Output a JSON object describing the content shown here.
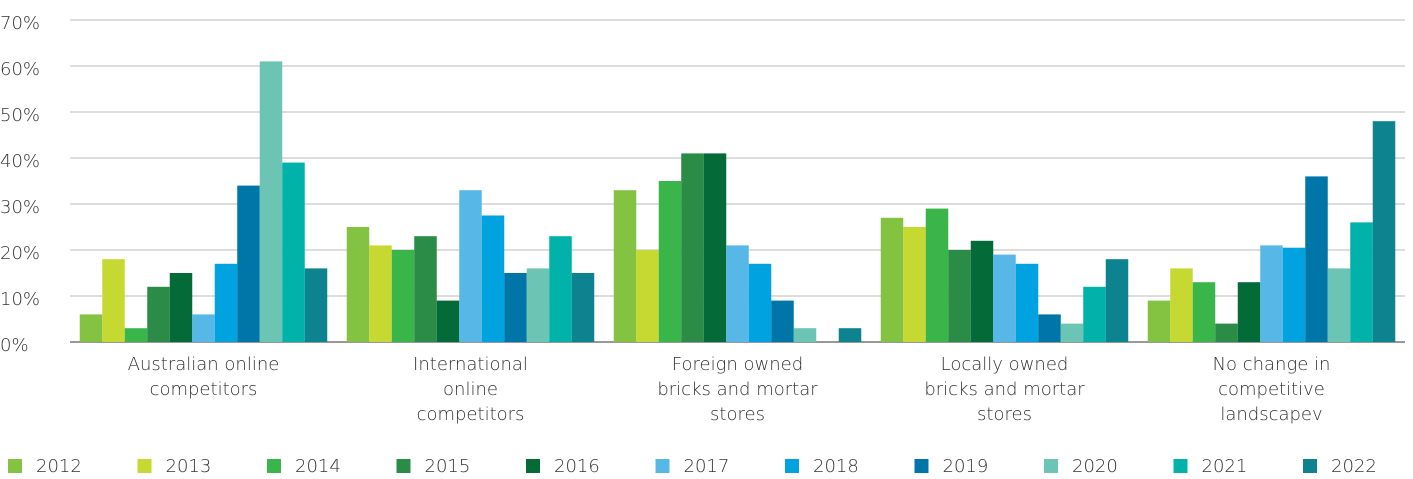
{
  "chart_data": {
    "type": "bar",
    "categories": [
      [
        "Australian online",
        "competitors"
      ],
      [
        "International",
        "online",
        "competitors"
      ],
      [
        "Foreign owned",
        "bricks and mortar",
        "stores"
      ],
      [
        "Locally owned",
        "bricks and mortar",
        "stores"
      ],
      [
        "No change in",
        "competitive",
        "landscapev"
      ]
    ],
    "series": [
      {
        "name": "2012",
        "color": "#84c341",
        "values": [
          6,
          25,
          33,
          27,
          9
        ]
      },
      {
        "name": "2013",
        "color": "#c5d932",
        "values": [
          18,
          21,
          20,
          25,
          16
        ]
      },
      {
        "name": "2014",
        "color": "#3ab54a",
        "values": [
          3,
          20,
          35,
          29,
          13
        ]
      },
      {
        "name": "2015",
        "color": "#2a8c47",
        "values": [
          12,
          23,
          41,
          20,
          4
        ]
      },
      {
        "name": "2016",
        "color": "#046a38",
        "values": [
          15,
          9,
          41,
          22,
          13
        ]
      },
      {
        "name": "2017",
        "color": "#57b8e8",
        "values": [
          6,
          33,
          21,
          19,
          21
        ]
      },
      {
        "name": "2018",
        "color": "#00a3e0",
        "values": [
          17,
          27.5,
          17,
          17,
          20.5
        ]
      },
      {
        "name": "2019",
        "color": "#0076a8",
        "values": [
          34,
          15,
          9,
          6,
          36
        ]
      },
      {
        "name": "2020",
        "color": "#6cc4b4",
        "values": [
          61,
          16,
          3,
          4,
          16
        ]
      },
      {
        "name": "2021",
        "color": "#00b2a9",
        "values": [
          39,
          23,
          0,
          12,
          26
        ]
      },
      {
        "name": "2022",
        "color": "#0d8390",
        "values": [
          16,
          15,
          3,
          18,
          48
        ]
      }
    ],
    "ylim": [
      0,
      70
    ],
    "yticks": [
      {
        "value": 0,
        "label": "0%"
      },
      {
        "value": 10,
        "label": "10%"
      },
      {
        "value": 20,
        "label": "20%"
      },
      {
        "value": 30,
        "label": "30%"
      },
      {
        "value": 40,
        "label": "40%"
      },
      {
        "value": 50,
        "label": "50%"
      },
      {
        "value": 60,
        "label": "60%"
      },
      {
        "value": 70,
        "label": "70%"
      }
    ],
    "grid": true,
    "legend": "bottom"
  }
}
